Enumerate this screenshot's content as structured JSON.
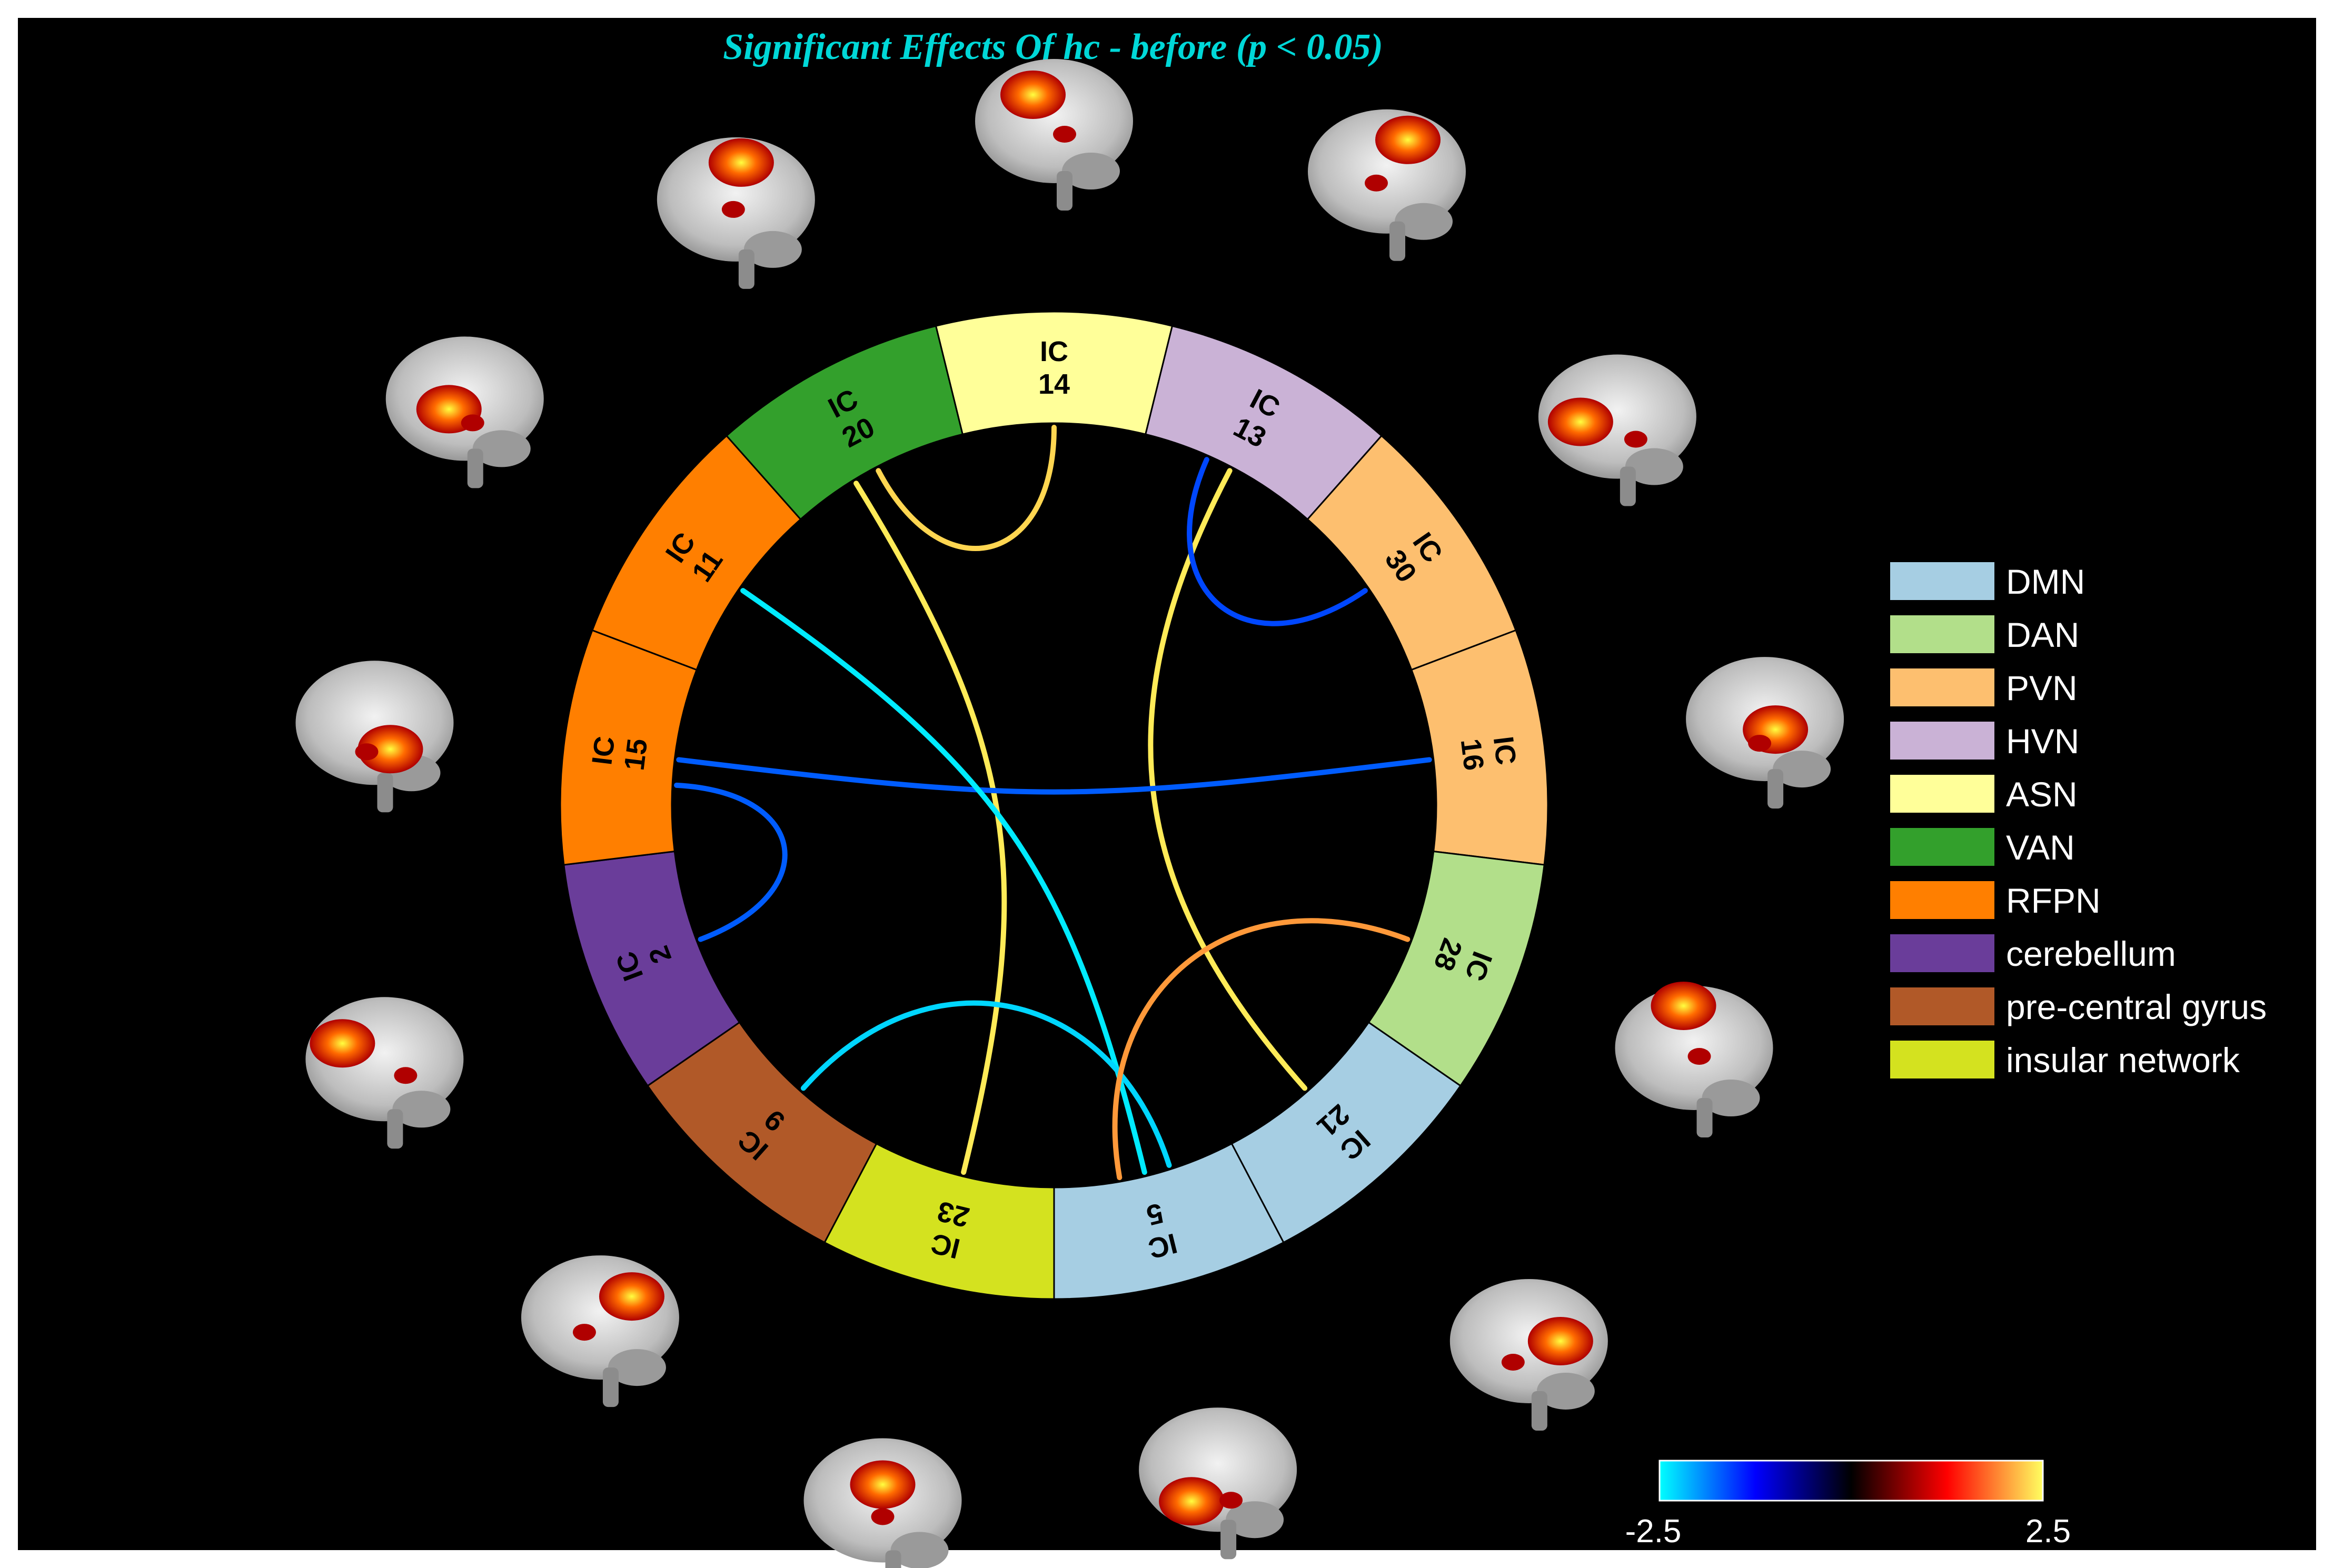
{
  "chart_data": {
    "type": "connectogram",
    "title": "Significant Effects Of hc - before (p < 0.05)",
    "title_color": "#00d8d8",
    "segments": [
      {
        "label": "IC\n14",
        "network": "ASN"
      },
      {
        "label": "IC\n13",
        "network": "HVN"
      },
      {
        "label": "IC\n30",
        "network": "PVN"
      },
      {
        "label": "IC\n16",
        "network": "PVN"
      },
      {
        "label": "IC\n28",
        "network": "DAN"
      },
      {
        "label": "IC\n21",
        "network": "DMN"
      },
      {
        "label": "IC\n5",
        "network": "DMN"
      },
      {
        "label": "IC\n23",
        "network": "insular network"
      },
      {
        "label": "IC\n9",
        "network": "pre-central gyrus"
      },
      {
        "label": "IC\n2",
        "network": "cerebellum"
      },
      {
        "label": "IC\n15",
        "network": "RFPN"
      },
      {
        "label": "IC\n11",
        "network": "RFPN"
      },
      {
        "label": "IC\n20",
        "network": "VAN"
      }
    ],
    "connections": [
      {
        "from": "IC 14",
        "to": "IC 20",
        "value": 2.3
      },
      {
        "from": "IC 20",
        "to": "IC 23",
        "value": 2.4
      },
      {
        "from": "IC 13",
        "to": "IC 21",
        "value": 2.4
      },
      {
        "from": "IC 13",
        "to": "IC 30",
        "value": -1.6
      },
      {
        "from": "IC 15",
        "to": "IC 16",
        "value": -1.7
      },
      {
        "from": "IC 15",
        "to": "IC 2",
        "value": -1.7
      },
      {
        "from": "IC 11",
        "to": "IC 5",
        "value": -2.4
      },
      {
        "from": "IC 5",
        "to": "IC 9",
        "value": -2.3
      },
      {
        "from": "IC 5",
        "to": "IC 28",
        "value": 2.0
      }
    ],
    "legend": {
      "placement": "right",
      "items": [
        {
          "name": "DMN",
          "color": "#a6cee3"
        },
        {
          "name": "DAN",
          "color": "#b2df8a"
        },
        {
          "name": "PVN",
          "color": "#fdbf6f"
        },
        {
          "name": "HVN",
          "color": "#cab2d6"
        },
        {
          "name": "ASN",
          "color": "#ffff99"
        },
        {
          "name": "VAN",
          "color": "#33a02c"
        },
        {
          "name": "RFPN",
          "color": "#ff7f00"
        },
        {
          "name": "cerebellum",
          "color": "#6a3d9a"
        },
        {
          "name": "pre-central gyrus",
          "color": "#b15928"
        },
        {
          "name": "insular network",
          "color": "#d4e21f"
        }
      ]
    },
    "colorbar": {
      "min": -2.5,
      "max": 2.5,
      "min_label": "-2.5",
      "max_label": "2.5",
      "placement": "bottom-right",
      "colors": [
        "#00ffff",
        "#0000ff",
        "#000000",
        "#ff0000",
        "#ffff60"
      ]
    }
  }
}
